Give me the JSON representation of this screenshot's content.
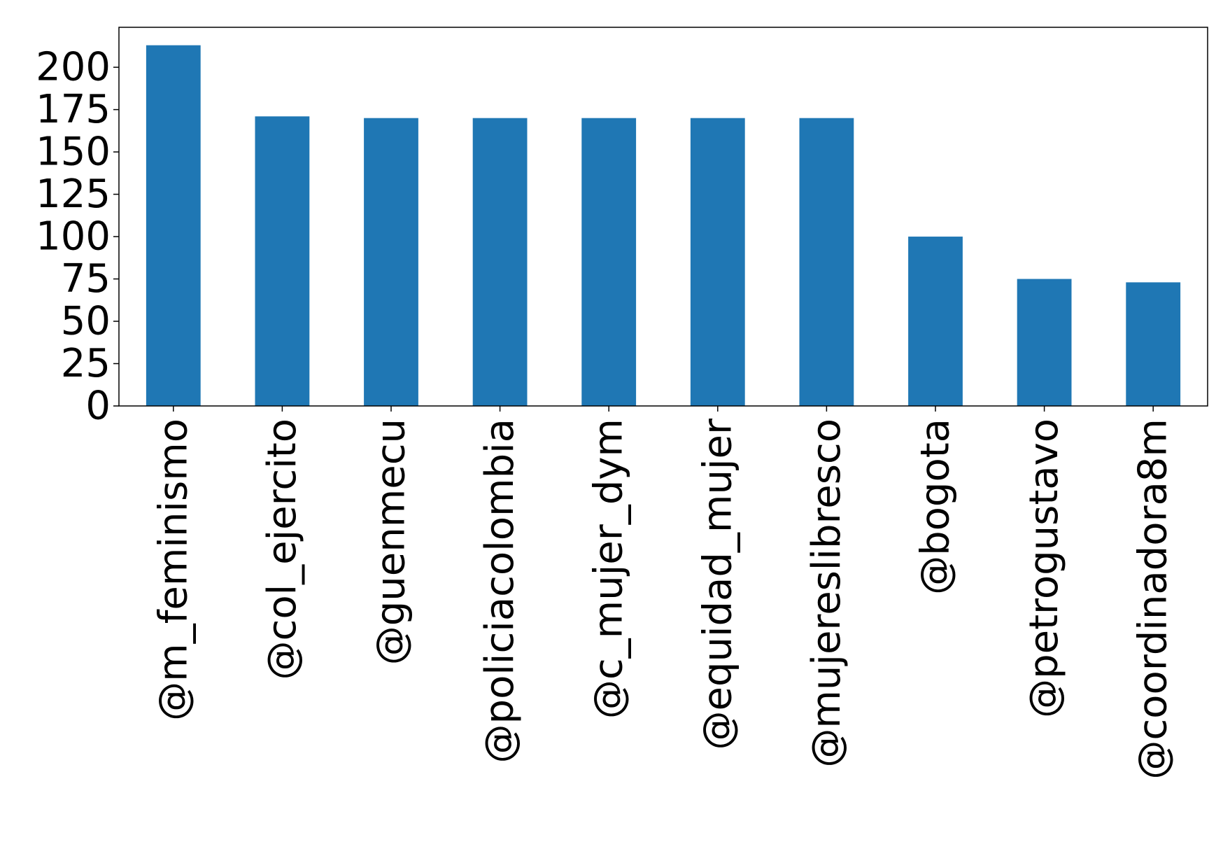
{
  "chart_data": {
    "type": "bar",
    "categories": [
      "@m_feminismo",
      "@col_ejercito",
      "@guenmecu",
      "@policiacolombia",
      "@c_mujer_dym",
      "@equidad_mujer",
      "@mujereslibresco",
      "@bogota",
      "@petrogustavo",
      "@coordinadora8m"
    ],
    "values": [
      213,
      171,
      170,
      170,
      170,
      170,
      170,
      100,
      75,
      73
    ],
    "yticks": [
      0,
      25,
      50,
      75,
      100,
      125,
      150,
      175,
      200
    ],
    "ylim": [
      0,
      223.6
    ],
    "title": "",
    "xlabel": "",
    "ylabel": "",
    "grid": false,
    "bar_color": "#1f77b4"
  }
}
